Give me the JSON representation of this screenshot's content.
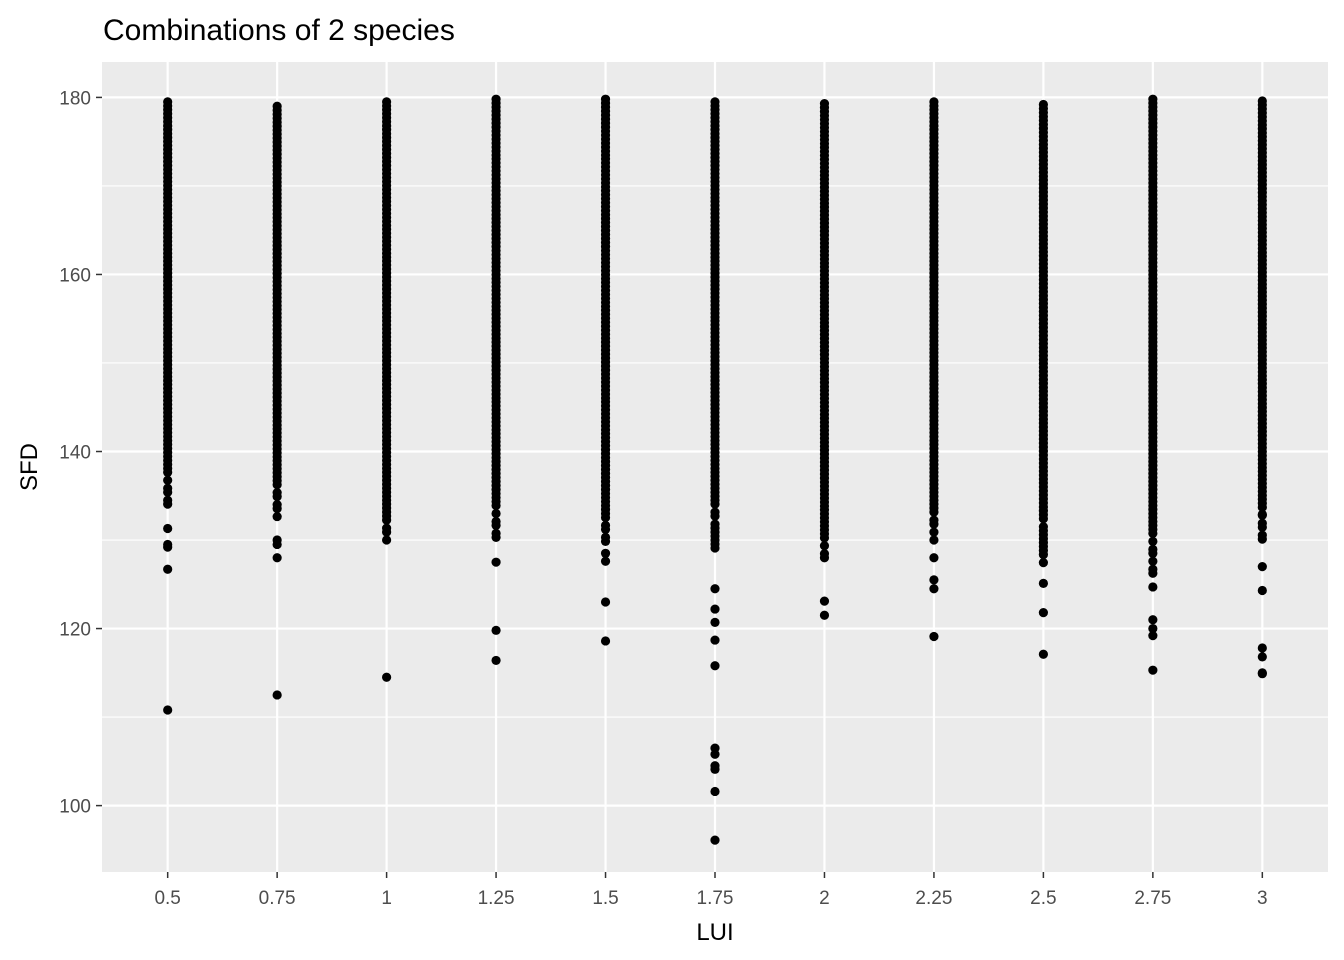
{
  "chart_data": {
    "type": "scatter",
    "title": "Combinations of 2 species",
    "xlabel": "LUI",
    "ylabel": "SFD",
    "x_ticks": [
      {
        "value": 0.5,
        "label": "0.5"
      },
      {
        "value": 0.75,
        "label": "0.75"
      },
      {
        "value": 1,
        "label": "1"
      },
      {
        "value": 1.25,
        "label": "1.25"
      },
      {
        "value": 1.5,
        "label": "1.5"
      },
      {
        "value": 1.75,
        "label": "1.75"
      },
      {
        "value": 2,
        "label": "2"
      },
      {
        "value": 2.25,
        "label": "2.25"
      },
      {
        "value": 2.5,
        "label": "2.5"
      },
      {
        "value": 2.75,
        "label": "2.75"
      },
      {
        "value": 3,
        "label": "3"
      }
    ],
    "y_ticks": [
      {
        "value": 100,
        "label": "100"
      },
      {
        "value": 120,
        "label": "120"
      },
      {
        "value": 140,
        "label": "140"
      },
      {
        "value": 160,
        "label": "160"
      },
      {
        "value": 180,
        "label": "180"
      }
    ],
    "xlim": [
      0.35,
      3.15
    ],
    "ylim": [
      92.5,
      184
    ],
    "grid": true,
    "point_color": "#000000",
    "panel_background": "#ebebeb",
    "grid_color": "#ffffff",
    "columns": [
      {
        "x": 0.5,
        "dense_range": [
          133.5,
          179.5
        ],
        "outliers": [
          131.3,
          129.5,
          129.2,
          126.7,
          110.8
        ]
      },
      {
        "x": 0.75,
        "dense_range": [
          132.5,
          179.0
        ],
        "outliers": [
          130.0,
          129.5,
          128.0,
          112.5
        ]
      },
      {
        "x": 1,
        "dense_range": [
          129.5,
          179.5
        ],
        "outliers": [
          114.5
        ]
      },
      {
        "x": 1.25,
        "dense_range": [
          129.5,
          179.8
        ],
        "outliers": [
          127.5,
          119.8,
          116.4
        ]
      },
      {
        "x": 1.5,
        "dense_range": [
          129.0,
          179.8
        ],
        "outliers": [
          128.5,
          127.6,
          123.0,
          118.6
        ]
      },
      {
        "x": 1.75,
        "dense_range": [
          128.8,
          179.5
        ],
        "outliers": [
          124.5,
          122.2,
          120.7,
          118.7,
          115.8,
          106.5,
          105.8,
          104.5,
          104.1,
          101.6,
          96.1
        ]
      },
      {
        "x": 2,
        "dense_range": [
          127.5,
          179.3
        ],
        "outliers": [
          123.1,
          121.5
        ]
      },
      {
        "x": 2.25,
        "dense_range": [
          130.0,
          179.5
        ],
        "outliers": [
          128.0,
          125.5,
          124.5,
          119.1
        ]
      },
      {
        "x": 2.5,
        "dense_range": [
          127.2,
          179.2
        ],
        "outliers": [
          125.1,
          121.8,
          117.1
        ]
      },
      {
        "x": 2.75,
        "dense_range": [
          125.5,
          179.8
        ],
        "outliers": [
          124.7,
          121.0,
          120.0,
          119.2,
          115.3
        ]
      },
      {
        "x": 3,
        "dense_range": [
          129.3,
          179.6
        ],
        "outliers": [
          132.9,
          127.0,
          124.3,
          117.8,
          116.8,
          115.0,
          114.9
        ]
      }
    ]
  }
}
